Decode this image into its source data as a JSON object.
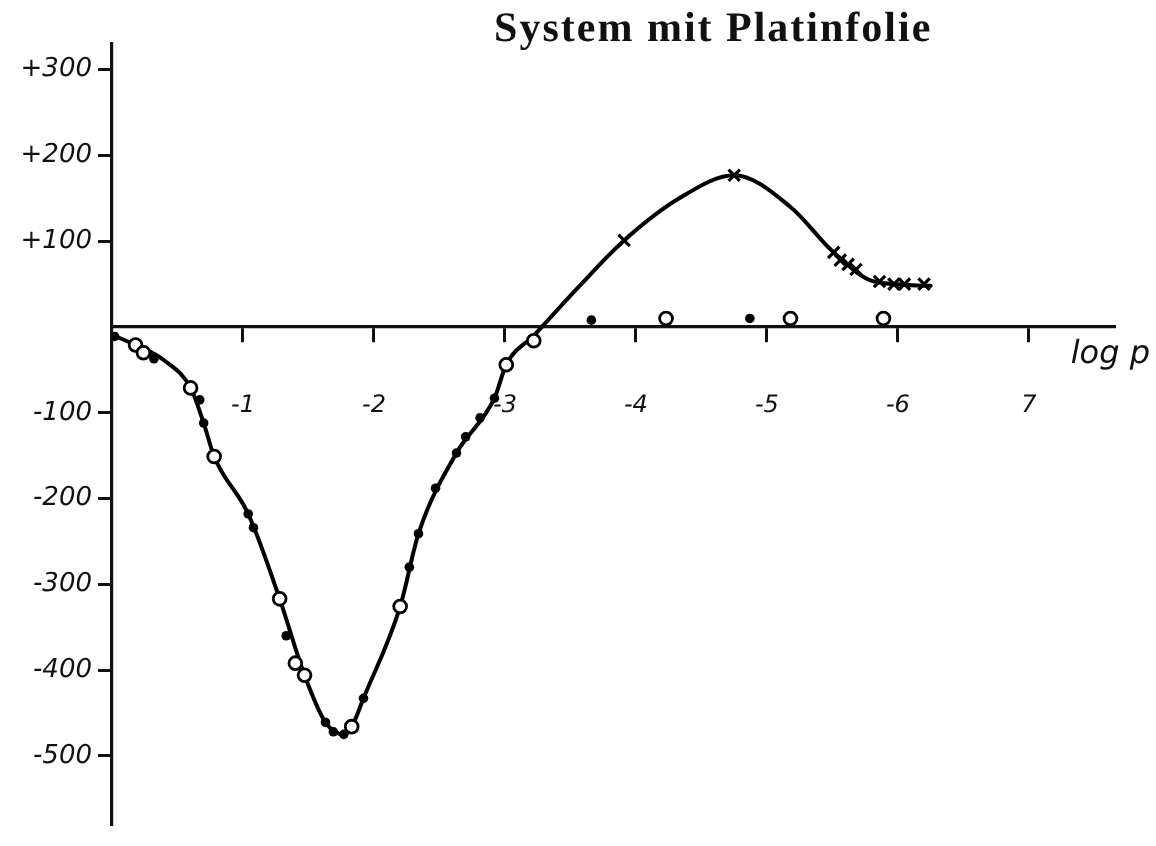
{
  "chart_data": {
    "type": "scatter",
    "title": "System mit Platinfolie",
    "xlabel": "log p",
    "xlim": [
      0,
      -7.65
    ],
    "xticks": [
      -1,
      -2,
      -3,
      -4,
      -5,
      -6,
      {
        "value": -7,
        "label": "7"
      }
    ],
    "ylim": [
      -580,
      330
    ],
    "yticks": [
      {
        "value": 300,
        "label": "+300"
      },
      {
        "value": 200,
        "label": "+200"
      },
      {
        "value": 100,
        "label": "+100"
      },
      -100,
      -200,
      -300,
      -400,
      -500
    ],
    "series": [
      {
        "type": "line",
        "marker": "none",
        "color": "#000000",
        "x": [
          -0.03,
          -0.18,
          -0.4,
          -0.6,
          -0.7,
          -0.78,
          -1.04,
          -1.28,
          -1.47,
          -1.63,
          -1.77,
          -1.83,
          -1.92,
          -2.2,
          -2.34,
          -2.63,
          -2.92,
          -3.01,
          -3.22,
          -3.57,
          -3.91,
          -4.34,
          -4.75,
          -5.18,
          -5.51,
          -5.82,
          -6.25
        ],
        "values": [
          -11,
          -21,
          -39,
          -71,
          -112,
          -151,
          -218,
          -317,
          -406,
          -461,
          -475,
          -466,
          -433,
          -326,
          -241,
          -147,
          -83,
          -44,
          -10,
          48,
          101,
          151,
          177,
          140,
          87,
          53,
          48
        ]
      },
      {
        "marker": "circle",
        "color": "#000000",
        "x": [
          -0.02,
          -0.32,
          -0.67,
          -0.7,
          -1.04,
          -1.08,
          -1.33,
          -1.63,
          -1.69,
          -1.77,
          -1.92,
          -2.27,
          -2.34,
          -2.47,
          -2.63,
          -2.7,
          -2.81,
          -2.92,
          -3.66,
          -4.87
        ],
        "values": [
          -11,
          -37,
          -85,
          -112,
          -218,
          -234,
          -360,
          -461,
          -472,
          -475,
          -433,
          -280,
          -241,
          -188,
          -147,
          -128,
          -106,
          -83,
          8,
          10
        ]
      },
      {
        "marker": "circle",
        "color": "#000000",
        "x": [
          -0.18,
          -0.24,
          -0.6,
          -0.78,
          -1.28,
          -1.4,
          -1.47,
          -1.83,
          -2.2,
          -3.01,
          -3.22,
          -4.23,
          -5.18,
          -5.89
        ],
        "values": [
          -21,
          -30,
          -71,
          -151,
          -317,
          -392,
          -406,
          -466,
          -326,
          -44,
          -16,
          10,
          10,
          10
        ]
      },
      {
        "marker": "cross",
        "color": "#000000",
        "x": [
          -3.91,
          -4.75,
          -5.51,
          -5.56,
          -5.62,
          -5.68,
          -5.86,
          -5.97,
          -6.05,
          -6.2
        ],
        "values": [
          101,
          177,
          87,
          78,
          73,
          67,
          53,
          50,
          50,
          50
        ]
      }
    ]
  }
}
